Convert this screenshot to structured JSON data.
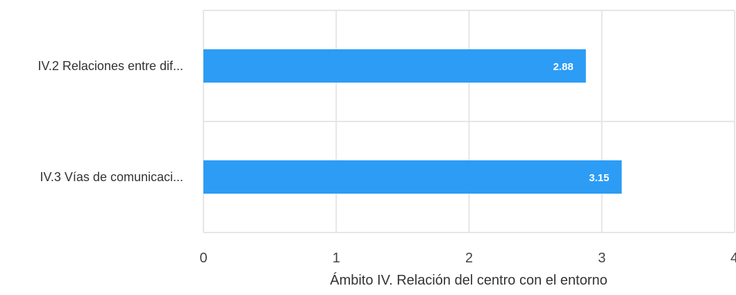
{
  "chart_data": {
    "type": "bar",
    "orientation": "horizontal",
    "categories": [
      "IV.2 Relaciones entre dif...",
      "IV.3 Vías de comunicaci..."
    ],
    "values": [
      2.88,
      3.15
    ],
    "data_labels": [
      "2.88",
      "3.15"
    ],
    "xlabel": "Ámbito IV. Relación del centro con el entorno",
    "ylabel": "",
    "xlim": [
      0,
      4
    ],
    "x_ticks": [
      "0",
      "1",
      "2",
      "3",
      "4"
    ],
    "grid": true,
    "bar_color": "#2c9cf4"
  }
}
